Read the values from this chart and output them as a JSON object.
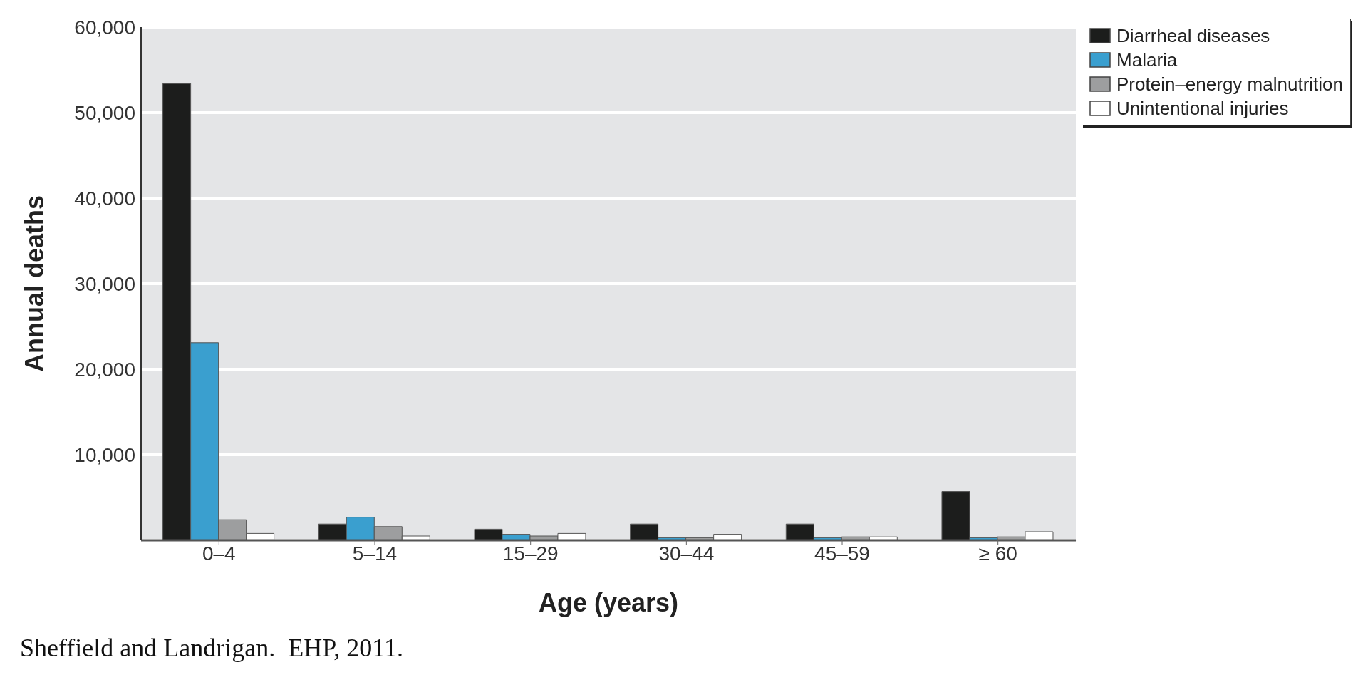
{
  "chart_data": {
    "type": "bar",
    "xlabel": "Age (years)",
    "ylabel": "Annual deaths",
    "categories": [
      "0–4",
      "5–14",
      "15–29",
      "30–44",
      "45–59",
      "≥ 60"
    ],
    "series": [
      {
        "name": "Diarrheal diseases",
        "color": "#1c1d1c",
        "values": [
          53400,
          1900,
          1300,
          1900,
          1900,
          5700
        ]
      },
      {
        "name": "Malaria",
        "color": "#3a9fcf",
        "values": [
          23100,
          2700,
          700,
          300,
          300,
          300
        ]
      },
      {
        "name": "Protein–energy malnutrition",
        "color": "#9d9e9f",
        "values": [
          2400,
          1600,
          500,
          300,
          400,
          400
        ]
      },
      {
        "name": "Unintentional injuries",
        "color": "#ffffff",
        "values": [
          800,
          500,
          800,
          700,
          400,
          1000
        ]
      }
    ],
    "ylim": [
      0,
      60000
    ],
    "yticks": [
      {
        "value": 10000,
        "label": "10,000"
      },
      {
        "value": 20000,
        "label": "20,000"
      },
      {
        "value": 30000,
        "label": "30,000"
      },
      {
        "value": 40000,
        "label": "40,000"
      },
      {
        "value": 50000,
        "label": "50,000"
      },
      {
        "value": 60000,
        "label": "60,000"
      }
    ],
    "grid": "y",
    "legend": "top right",
    "annotations": [
      "Sheffield and Landrigan.  EHP, 2011."
    ]
  }
}
